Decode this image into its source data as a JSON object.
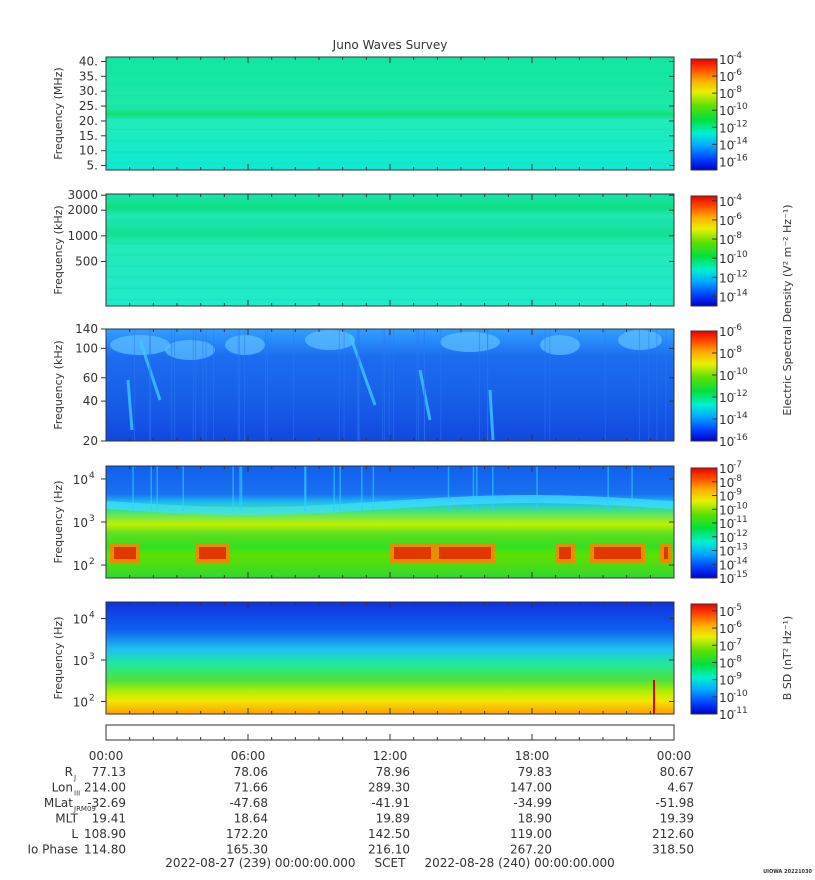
{
  "chart_data": {
    "type": "heatmap",
    "title": "Juno Waves Survey",
    "panels": [
      {
        "id": "p1",
        "ylabel": "Frequency (MHz)",
        "yscale": "linear",
        "yticks": [
          "40.",
          "35.",
          "30.",
          "25.",
          "20.",
          "15.",
          "10.",
          "5."
        ],
        "yrange": [
          3.5,
          41.5
        ],
        "cbar_ticks": [
          {
            "base": "10",
            "exp": "-4"
          },
          {
            "base": "10",
            "exp": "-6"
          },
          {
            "base": "10",
            "exp": "-8"
          },
          {
            "base": "10",
            "exp": "-10"
          },
          {
            "base": "10",
            "exp": "-12"
          },
          {
            "base": "10",
            "exp": "-14"
          },
          {
            "base": "10",
            "exp": "-16"
          }
        ],
        "cbar_range": [
          -17,
          -4
        ],
        "colorbar_label": ""
      },
      {
        "id": "p2",
        "ylabel": "Frequency (kHz)",
        "yscale": "log",
        "yticks": [
          "3000",
          "2000",
          "1000",
          "500"
        ],
        "yrange": [
          150,
          3100
        ],
        "cbar_ticks": [
          {
            "base": "10",
            "exp": "-4"
          },
          {
            "base": "10",
            "exp": "-6"
          },
          {
            "base": "10",
            "exp": "-8"
          },
          {
            "base": "10",
            "exp": "-10"
          },
          {
            "base": "10",
            "exp": "-12"
          },
          {
            "base": "10",
            "exp": "-14"
          }
        ],
        "cbar_range": [
          -15,
          -3.5
        ],
        "colorbar_label": "Electric Spectral Density (V² m⁻² Hz⁻¹)"
      },
      {
        "id": "p3",
        "ylabel": "Frequency (kHz)",
        "yscale": "log",
        "yticks": [
          "140",
          "100",
          "60",
          "40",
          "20"
        ],
        "yrange": [
          20,
          140
        ],
        "cbar_ticks": [
          {
            "base": "10",
            "exp": "-6"
          },
          {
            "base": "10",
            "exp": "-8"
          },
          {
            "base": "10",
            "exp": "-10"
          },
          {
            "base": "10",
            "exp": "-12"
          },
          {
            "base": "10",
            "exp": "-14"
          },
          {
            "base": "10",
            "exp": "-16"
          }
        ],
        "cbar_range": [
          -16,
          -6
        ],
        "colorbar_label": ""
      },
      {
        "id": "p4",
        "ylabel": "Frequency (Hz)",
        "yscale": "log",
        "yticks": [
          {
            "base": "10",
            "exp": "4"
          },
          {
            "base": "10",
            "exp": "3"
          },
          {
            "base": "10",
            "exp": "2"
          }
        ],
        "yrange": [
          50,
          20000
        ],
        "cbar_ticks": [
          {
            "base": "10",
            "exp": "-7"
          },
          {
            "base": "10",
            "exp": "-8"
          },
          {
            "base": "10",
            "exp": "-9"
          },
          {
            "base": "10",
            "exp": "-10"
          },
          {
            "base": "10",
            "exp": "-11"
          },
          {
            "base": "10",
            "exp": "-12"
          },
          {
            "base": "10",
            "exp": "-13"
          },
          {
            "base": "10",
            "exp": "-14"
          },
          {
            "base": "10",
            "exp": "-15"
          }
        ],
        "cbar_range": [
          -15,
          -7
        ],
        "colorbar_label": ""
      },
      {
        "id": "p5",
        "ylabel": "Frequency (Hz)",
        "yscale": "log",
        "yticks": [
          {
            "base": "10",
            "exp": "4"
          },
          {
            "base": "10",
            "exp": "3"
          },
          {
            "base": "10",
            "exp": "2"
          }
        ],
        "yrange": [
          50,
          25000
        ],
        "cbar_ticks": [
          {
            "base": "10",
            "exp": "-5"
          },
          {
            "base": "10",
            "exp": "-6"
          },
          {
            "base": "10",
            "exp": "-7"
          },
          {
            "base": "10",
            "exp": "-8"
          },
          {
            "base": "10",
            "exp": "-9"
          },
          {
            "base": "10",
            "exp": "-10"
          },
          {
            "base": "10",
            "exp": "-11"
          }
        ],
        "cbar_range": [
          -11,
          -4.6
        ],
        "colorbar_label": "B SD (nT² Hz⁻¹)"
      }
    ],
    "x_time_labels": [
      "00:00",
      "06:00",
      "12:00",
      "18:00",
      "00:00"
    ],
    "ephemeris": {
      "rows": [
        {
          "label": "R",
          "sub": "J",
          "values": [
            "77.13",
            "78.06",
            "78.96",
            "79.83",
            "80.67"
          ]
        },
        {
          "label": "Lon",
          "sub": "III",
          "values": [
            "214.00",
            "71.66",
            "289.30",
            "147.00",
            "4.67"
          ]
        },
        {
          "label": "MLat",
          "sub": "JRM09",
          "values": [
            "-32.69",
            "-47.68",
            "-41.91",
            "-34.99",
            "-51.98"
          ]
        },
        {
          "label": "MLT",
          "sub": "",
          "values": [
            "19.41",
            "18.64",
            "19.89",
            "18.90",
            "19.39"
          ]
        },
        {
          "label": "L",
          "sub": "",
          "values": [
            "108.90",
            "172.20",
            "142.50",
            "119.00",
            "212.60"
          ]
        },
        {
          "label": "Io Phase",
          "sub": "",
          "values": [
            "114.80",
            "165.30",
            "216.10",
            "267.20",
            "318.50"
          ]
        }
      ]
    },
    "time_range_text": "2022-08-27 (239) 00:00:00.000     SCET     2022-08-28 (240) 00:00:00.000",
    "credit": "UIOWA 20221030"
  }
}
